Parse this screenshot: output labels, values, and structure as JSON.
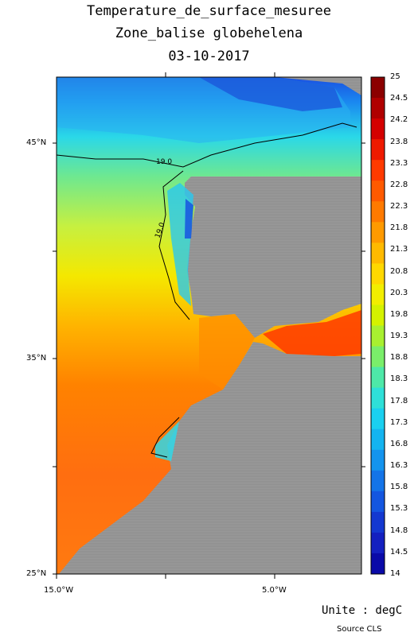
{
  "titles": {
    "line1": "Temperature_de_surface_mesuree",
    "line2": "Zone_balise globehelena",
    "line3": "03-10-2017"
  },
  "axes": {
    "lat_labels": [
      "45°N",
      "35°N",
      "25°N"
    ],
    "lon_labels": [
      "15.0°W",
      "5.0°W"
    ]
  },
  "contour_labels": [
    "19.0",
    "19.0"
  ],
  "colorbar": {
    "labels": [
      "25",
      "24.5",
      "24.2",
      "23.8",
      "23.3",
      "22.8",
      "22.3",
      "21.8",
      "21.3",
      "20.8",
      "20.3",
      "19.8",
      "19.3",
      "18.8",
      "18.3",
      "17.8",
      "17.3",
      "16.8",
      "16.3",
      "15.8",
      "15.3",
      "14.8",
      "14.5",
      "14"
    ],
    "colors": [
      "#8b0000",
      "#b00000",
      "#d40000",
      "#ee1a00",
      "#ff3a00",
      "#ff5a00",
      "#ff7a00",
      "#ff9a00",
      "#ffba00",
      "#ffd800",
      "#f2ee00",
      "#d4f200",
      "#a8f030",
      "#7aee6a",
      "#4ee8a8",
      "#2ee0d8",
      "#1ad0f0",
      "#14b4f0",
      "#1494ee",
      "#1474e8",
      "#1456e0",
      "#1438d0",
      "#1420c0",
      "#0a0aa8"
    ]
  },
  "footer": {
    "unit": "Unite : degC",
    "source": "Source CLS"
  }
}
